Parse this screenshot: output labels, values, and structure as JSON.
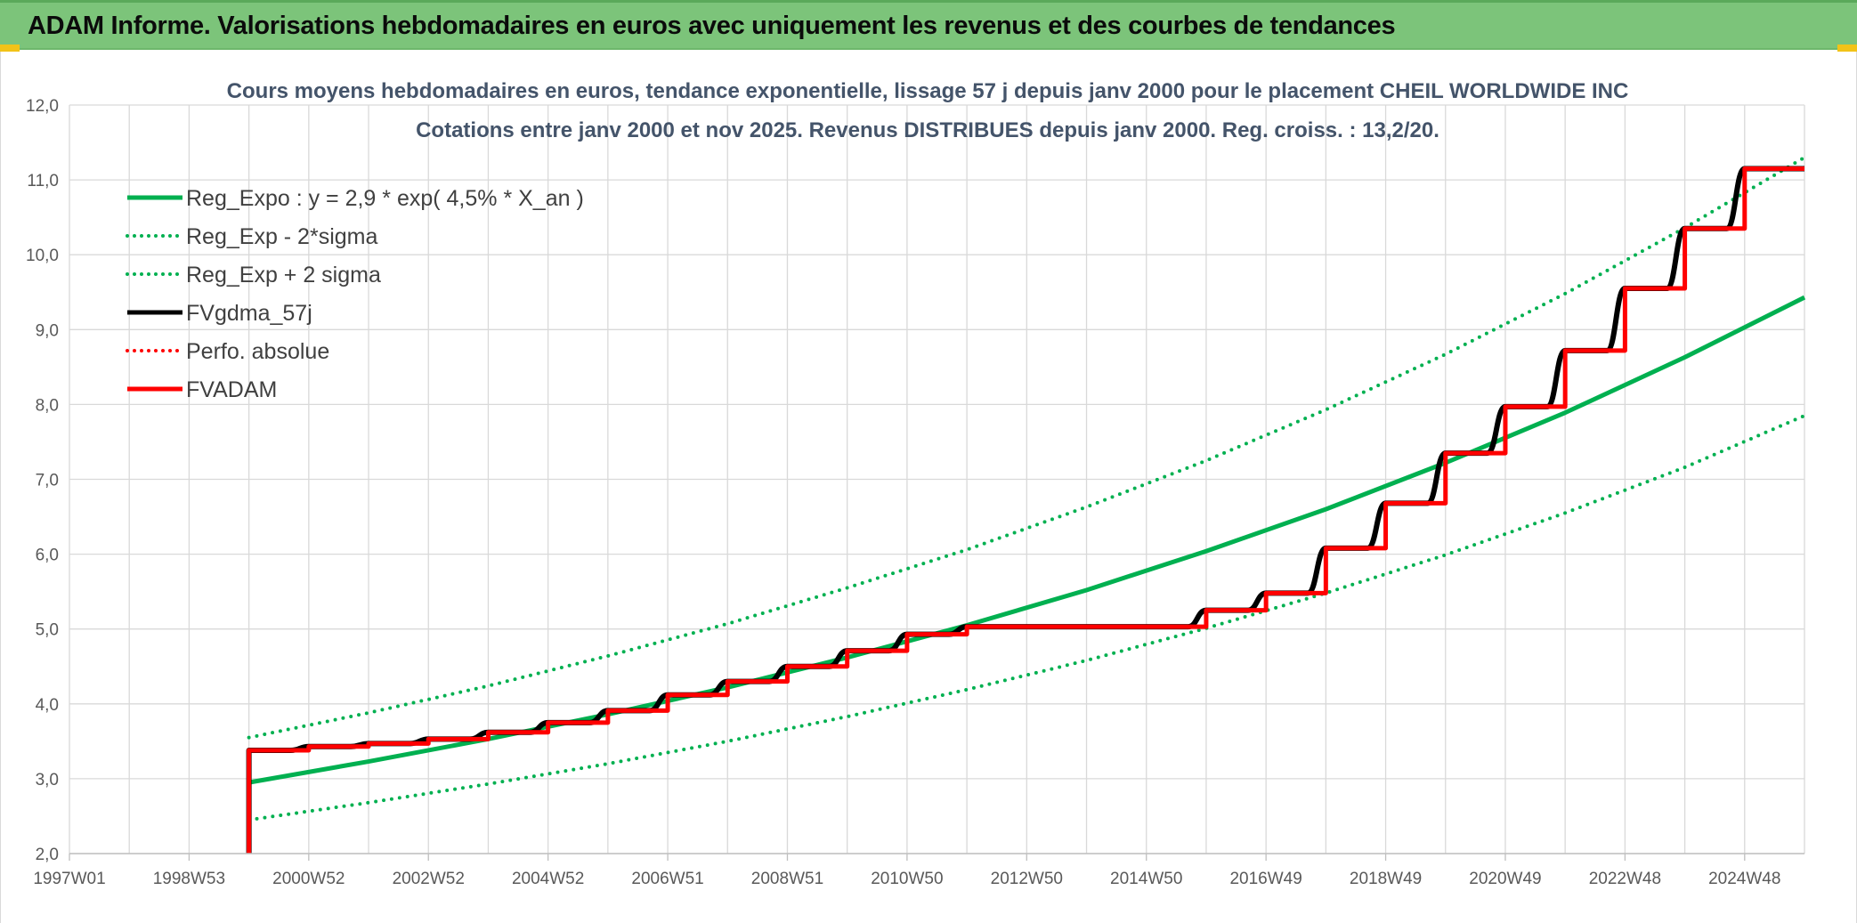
{
  "header": {
    "title": "ADAM Informe. Valorisations hebdomadaires en euros avec uniquement les revenus et des courbes de tendances",
    "accent_color": "#7cc47a",
    "corner_color": "#f2c318"
  },
  "chart_data": {
    "type": "line",
    "title_lines": [
      "Cours moyens hebdomadaires en euros, tendance exponentielle, lissage 57 j depuis janv 2000 pour le placement CHEIL WORLDWIDE INC",
      "Cotations entre janv 2000 et nov 2025. Revenus DISTRIBUES depuis janv 2000. Reg. croiss. : 13,2/20."
    ],
    "xlabel": "",
    "ylabel": "",
    "x_range": [
      1997.0,
      2026.0
    ],
    "ylim": [
      2.0,
      12.0
    ],
    "y_ticks": [
      "2,0",
      "3,0",
      "4,0",
      "5,0",
      "6,0",
      "7,0",
      "8,0",
      "9,0",
      "10,0",
      "11,0",
      "12,0"
    ],
    "x_ticks": [
      {
        "label": "1997W01",
        "x": 1997.0
      },
      {
        "label": "1998W53",
        "x": 1999.0
      },
      {
        "label": "2000W52",
        "x": 2001.0
      },
      {
        "label": "2002W52",
        "x": 2003.0
      },
      {
        "label": "2004W52",
        "x": 2005.0
      },
      {
        "label": "2006W51",
        "x": 2007.0
      },
      {
        "label": "2008W51",
        "x": 2009.0
      },
      {
        "label": "2010W50",
        "x": 2011.0
      },
      {
        "label": "2012W50",
        "x": 2013.0
      },
      {
        "label": "2014W50",
        "x": 2015.0
      },
      {
        "label": "2016W49",
        "x": 2017.0
      },
      {
        "label": "2018W49",
        "x": 2019.0
      },
      {
        "label": "2020W49",
        "x": 2021.0
      },
      {
        "label": "2022W48",
        "x": 2023.0
      },
      {
        "label": "2024W48",
        "x": 2025.0
      }
    ],
    "grid": true,
    "legend_position": "top-left",
    "series": [
      {
        "name": "Reg_Expo : y = 2,9 * exp( 4,5% *  X_an )",
        "color": "#00b050",
        "style": "solid",
        "width": 5,
        "x": [
          2000.0,
          2002.0,
          2004.0,
          2006.0,
          2008.0,
          2010.0,
          2012.0,
          2014.0,
          2016.0,
          2018.0,
          2020.0,
          2022.0,
          2024.0,
          2026.0
        ],
        "y": [
          2.95,
          3.23,
          3.53,
          3.86,
          4.22,
          4.62,
          5.05,
          5.52,
          6.04,
          6.6,
          7.22,
          7.89,
          8.63,
          9.43
        ]
      },
      {
        "name": "Reg_Exp - 2*sigma",
        "color": "#00b050",
        "style": "dotted",
        "width": 4,
        "x": [
          2000.0,
          2002.0,
          2004.0,
          2006.0,
          2008.0,
          2010.0,
          2012.0,
          2014.0,
          2016.0,
          2018.0,
          2020.0,
          2022.0,
          2024.0,
          2026.0
        ],
        "y": [
          2.45,
          2.68,
          2.93,
          3.2,
          3.5,
          3.83,
          4.19,
          4.58,
          5.01,
          5.48,
          5.99,
          6.55,
          7.16,
          7.85
        ]
      },
      {
        "name": "Reg_Exp + 2 sigma",
        "color": "#00b050",
        "style": "dotted",
        "width": 4,
        "x": [
          2000.0,
          2002.0,
          2004.0,
          2006.0,
          2008.0,
          2010.0,
          2012.0,
          2014.0,
          2016.0,
          2018.0,
          2020.0,
          2022.0,
          2024.0,
          2026.0
        ],
        "y": [
          3.55,
          3.88,
          4.24,
          4.64,
          5.07,
          5.55,
          6.06,
          6.63,
          7.25,
          7.93,
          8.67,
          9.48,
          10.36,
          11.3
        ]
      },
      {
        "name": "FVgdma_57j",
        "color": "#000000",
        "style": "solid",
        "width": 6,
        "smooth": true,
        "x": [
          2000.0,
          2000.0,
          2001.0,
          2002.0,
          2003.0,
          2004.0,
          2005.0,
          2006.0,
          2007.0,
          2008.0,
          2009.0,
          2010.0,
          2011.0,
          2012.0,
          2013.0,
          2014.0,
          2015.0,
          2016.0,
          2017.0,
          2018.0,
          2019.0,
          2020.0,
          2021.0,
          2022.0,
          2023.0,
          2024.0,
          2025.0,
          2026.0
        ],
        "y": [
          2.0,
          3.38,
          3.43,
          3.47,
          3.53,
          3.62,
          3.75,
          3.91,
          4.12,
          4.3,
          4.5,
          4.71,
          4.93,
          5.03,
          5.03,
          5.03,
          5.03,
          5.25,
          5.48,
          6.08,
          6.68,
          7.35,
          7.97,
          8.72,
          9.55,
          10.35,
          11.15,
          11.15
        ]
      },
      {
        "name": "Perfo. absolue",
        "color": "#ff0000",
        "style": "dotted",
        "width": 3,
        "x": [],
        "y": []
      },
      {
        "name": "FVADAM",
        "color": "#ff0000",
        "style": "step",
        "width": 5,
        "x": [
          2000.0,
          2000.0,
          2001.0,
          2002.0,
          2003.0,
          2004.0,
          2005.0,
          2006.0,
          2007.0,
          2008.0,
          2009.0,
          2010.0,
          2011.0,
          2012.0,
          2013.0,
          2014.0,
          2015.0,
          2016.0,
          2017.0,
          2018.0,
          2019.0,
          2020.0,
          2021.0,
          2022.0,
          2023.0,
          2024.0,
          2025.0,
          2026.0
        ],
        "y": [
          2.0,
          3.38,
          3.43,
          3.47,
          3.53,
          3.62,
          3.75,
          3.91,
          4.12,
          4.3,
          4.5,
          4.71,
          4.93,
          5.03,
          5.03,
          5.03,
          5.03,
          5.25,
          5.48,
          6.08,
          6.68,
          7.35,
          7.97,
          8.72,
          9.55,
          10.35,
          11.15,
          11.15
        ]
      }
    ]
  }
}
